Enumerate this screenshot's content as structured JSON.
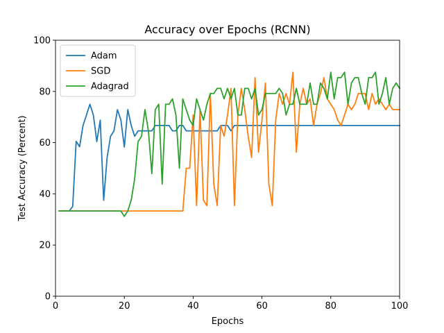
{
  "chart_data": {
    "type": "line",
    "title": "Accuracy over Epochs (RCNN)",
    "xlabel": "Epochs",
    "ylabel": "Test Accuracy (Percent)",
    "xlim": [
      0,
      100
    ],
    "ylim": [
      0,
      100
    ],
    "xticks": [
      0,
      20,
      40,
      60,
      80,
      100
    ],
    "yticks": [
      0,
      20,
      40,
      60,
      80,
      100
    ],
    "legend_position": "top-left",
    "grid": false,
    "series": [
      {
        "name": "Adam",
        "color": "#1f77b4",
        "x": [
          1,
          2,
          3,
          4,
          5,
          6,
          7,
          8,
          9,
          10,
          11,
          12,
          13,
          14,
          15,
          16,
          17,
          18,
          19,
          20,
          21,
          22,
          23,
          24,
          25,
          26,
          27,
          28,
          29,
          30,
          31,
          32,
          33,
          34,
          35,
          36,
          37,
          38,
          39,
          40,
          41,
          42,
          43,
          44,
          45,
          46,
          47,
          48,
          49,
          50,
          51,
          52,
          53,
          54,
          55,
          56,
          57,
          58,
          59,
          60,
          61,
          62,
          63,
          64,
          65,
          66,
          67,
          68,
          69,
          70,
          71,
          72,
          73,
          74,
          75,
          76,
          77,
          78,
          79,
          80,
          81,
          82,
          83,
          84,
          85,
          86,
          87,
          88,
          89,
          90,
          91,
          92,
          93,
          94,
          95,
          96,
          97,
          98,
          99,
          100
        ],
        "values": [
          33.3,
          33.3,
          33.3,
          33.3,
          35.1,
          60.5,
          58.4,
          66.7,
          70.8,
          75.0,
          70.8,
          60.4,
          68.8,
          37.5,
          54.2,
          62.5,
          64.6,
          72.9,
          68.8,
          58.3,
          72.9,
          66.7,
          62.5,
          64.6,
          64.6,
          64.6,
          64.6,
          64.6,
          66.7,
          66.7,
          66.7,
          66.7,
          66.7,
          64.6,
          64.6,
          66.7,
          66.7,
          64.6,
          64.6,
          64.6,
          64.6,
          64.6,
          64.6,
          64.6,
          64.6,
          64.6,
          64.6,
          66.7,
          66.7,
          66.7,
          64.6,
          66.7,
          66.7,
          66.7,
          66.7,
          66.7,
          66.7,
          66.7,
          66.7,
          66.7,
          66.7,
          66.7,
          66.7,
          66.7,
          66.7,
          66.7,
          66.7,
          66.7,
          66.7,
          66.7,
          66.7,
          66.7,
          66.7,
          66.7,
          66.7,
          66.7,
          66.7,
          66.7,
          66.7,
          66.7,
          66.7,
          66.7,
          66.7,
          66.7,
          66.7,
          66.7,
          66.7,
          66.7,
          66.7,
          66.7,
          66.7,
          66.7,
          66.7,
          66.7,
          66.7,
          66.7,
          66.7,
          66.7,
          66.7,
          66.7
        ]
      },
      {
        "name": "SGD",
        "color": "#ff7f0e",
        "x": [
          1,
          2,
          3,
          4,
          5,
          6,
          7,
          8,
          9,
          10,
          11,
          12,
          13,
          14,
          15,
          16,
          17,
          18,
          19,
          20,
          21,
          22,
          23,
          24,
          25,
          26,
          27,
          28,
          29,
          30,
          31,
          32,
          33,
          34,
          35,
          36,
          37,
          38,
          39,
          40,
          41,
          42,
          43,
          44,
          45,
          46,
          47,
          48,
          49,
          50,
          51,
          52,
          53,
          54,
          55,
          56,
          57,
          58,
          59,
          60,
          61,
          62,
          63,
          64,
          65,
          66,
          67,
          68,
          69,
          70,
          71,
          72,
          73,
          74,
          75,
          76,
          77,
          78,
          79,
          80,
          81,
          82,
          83,
          84,
          85,
          86,
          87,
          88,
          89,
          90,
          91,
          92,
          93,
          94,
          95,
          96,
          97,
          98,
          99,
          100
        ],
        "values": [
          33.3,
          33.3,
          33.3,
          33.3,
          33.3,
          33.3,
          33.3,
          33.3,
          33.3,
          33.3,
          33.3,
          33.3,
          33.3,
          33.3,
          33.3,
          33.3,
          33.3,
          33.3,
          33.3,
          33.3,
          33.3,
          33.3,
          33.3,
          33.3,
          33.3,
          33.3,
          33.3,
          33.3,
          33.3,
          33.3,
          33.3,
          33.3,
          33.3,
          33.3,
          33.3,
          33.3,
          33.3,
          50.0,
          50.0,
          70.8,
          35.4,
          72.9,
          37.5,
          35.4,
          79.2,
          43.8,
          35.4,
          66.7,
          62.5,
          70.8,
          81.2,
          35.4,
          70.8,
          81.2,
          72.9,
          62.5,
          54.2,
          85.4,
          56.2,
          68.8,
          83.3,
          43.8,
          35.4,
          68.8,
          79.2,
          75.0,
          79.2,
          75.0,
          87.5,
          56.2,
          75.0,
          81.2,
          75.0,
          77.1,
          66.7,
          75.0,
          79.2,
          85.4,
          77.1,
          75.0,
          72.9,
          68.8,
          66.7,
          70.8,
          75.0,
          72.9,
          75.0,
          79.2,
          79.2,
          79.2,
          72.9,
          79.2,
          75.0,
          77.1,
          75.0,
          72.9,
          75.0,
          72.9,
          72.9,
          72.9
        ]
      },
      {
        "name": "Adagrad",
        "color": "#2ca02c",
        "x": [
          1,
          2,
          3,
          4,
          5,
          6,
          7,
          8,
          9,
          10,
          11,
          12,
          13,
          14,
          15,
          16,
          17,
          18,
          19,
          20,
          21,
          22,
          23,
          24,
          25,
          26,
          27,
          28,
          29,
          30,
          31,
          32,
          33,
          34,
          35,
          36,
          37,
          38,
          39,
          40,
          41,
          42,
          43,
          44,
          45,
          46,
          47,
          48,
          49,
          50,
          51,
          52,
          53,
          54,
          55,
          56,
          57,
          58,
          59,
          60,
          61,
          62,
          63,
          64,
          65,
          66,
          67,
          68,
          69,
          70,
          71,
          72,
          73,
          74,
          75,
          76,
          77,
          78,
          79,
          80,
          81,
          82,
          83,
          84,
          85,
          86,
          87,
          88,
          89,
          90,
          91,
          92,
          93,
          94,
          95,
          96,
          97,
          98,
          99,
          100
        ],
        "values": [
          33.3,
          33.3,
          33.3,
          33.3,
          33.3,
          33.3,
          33.3,
          33.3,
          33.3,
          33.3,
          33.3,
          33.3,
          33.3,
          33.3,
          33.3,
          33.3,
          33.3,
          33.3,
          33.3,
          31.2,
          33.3,
          37.5,
          45.8,
          60.4,
          62.5,
          72.9,
          64.6,
          47.9,
          72.9,
          75.0,
          43.8,
          75.0,
          75.0,
          77.1,
          70.8,
          50.0,
          77.1,
          72.9,
          68.8,
          66.7,
          77.1,
          72.9,
          68.8,
          75.0,
          79.2,
          79.2,
          81.2,
          81.2,
          77.1,
          81.2,
          77.1,
          81.2,
          70.8,
          70.8,
          81.2,
          81.2,
          77.1,
          81.2,
          70.8,
          72.9,
          79.2,
          79.2,
          79.2,
          79.2,
          81.2,
          79.2,
          70.8,
          75.0,
          75.0,
          81.2,
          75.0,
          75.0,
          75.0,
          83.3,
          75.0,
          75.0,
          83.3,
          81.2,
          77.1,
          87.5,
          77.1,
          85.4,
          85.4,
          87.5,
          75.0,
          83.3,
          85.4,
          85.4,
          79.2,
          75.0,
          85.4,
          85.4,
          87.5,
          75.0,
          79.2,
          85.4,
          75.0,
          81.2,
          83.3,
          81.2
        ]
      }
    ]
  }
}
